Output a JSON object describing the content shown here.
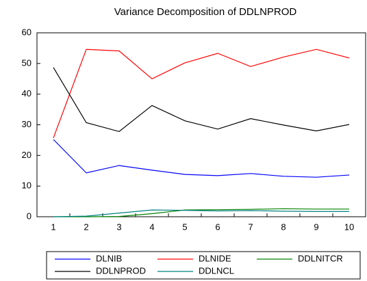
{
  "chart_data": {
    "type": "line",
    "title": "Variance Decomposition of DDLNPROD",
    "categories": [
      "1",
      "2",
      "3",
      "4",
      "5",
      "6",
      "7",
      "8",
      "9",
      "10"
    ],
    "series": [
      {
        "name": "DLNIB",
        "color": "#0000ff",
        "values": [
          25.2,
          14.3,
          16.7,
          15.2,
          13.8,
          13.4,
          14.1,
          13.2,
          12.9,
          13.6
        ]
      },
      {
        "name": "DLNIDE",
        "color": "#ff0000",
        "values": [
          25.7,
          54.6,
          54.1,
          45.0,
          50.2,
          53.3,
          49.0,
          52.1,
          54.6,
          51.8
        ]
      },
      {
        "name": "DDLNITCR",
        "color": "#008000",
        "values": [
          0,
          0,
          0.1,
          1.0,
          2.2,
          2.3,
          2.4,
          2.6,
          2.5,
          2.5
        ]
      },
      {
        "name": "DDLNPROD",
        "color": "#000000",
        "values": [
          48.7,
          30.7,
          27.8,
          36.3,
          31.3,
          28.6,
          32.0,
          29.9,
          28.0,
          30.1
        ]
      },
      {
        "name": "DDLNCL",
        "color": "#008080",
        "values": [
          0,
          0.2,
          1.2,
          2.2,
          2.1,
          1.9,
          2.0,
          1.8,
          1.7,
          1.7
        ]
      }
    ],
    "ylim": [
      0,
      60
    ],
    "yticks": [
      0,
      10,
      20,
      30,
      40,
      50,
      60
    ]
  }
}
